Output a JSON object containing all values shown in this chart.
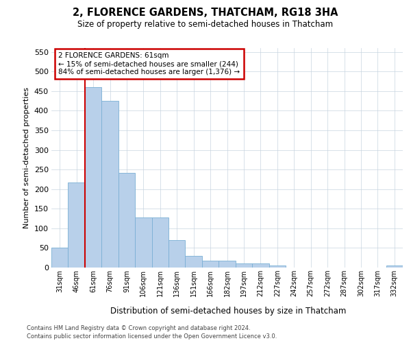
{
  "title": "2, FLORENCE GARDENS, THATCHAM, RG18 3HA",
  "subtitle": "Size of property relative to semi-detached houses in Thatcham",
  "xlabel": "Distribution of semi-detached houses by size in Thatcham",
  "ylabel": "Number of semi-detached properties",
  "categories": [
    "31sqm",
    "46sqm",
    "61sqm",
    "76sqm",
    "91sqm",
    "106sqm",
    "121sqm",
    "136sqm",
    "151sqm",
    "166sqm",
    "182sqm",
    "197sqm",
    "212sqm",
    "227sqm",
    "242sqm",
    "257sqm",
    "272sqm",
    "287sqm",
    "302sqm",
    "317sqm",
    "332sqm"
  ],
  "values": [
    51,
    217,
    460,
    425,
    242,
    128,
    128,
    70,
    30,
    17,
    17,
    10,
    10,
    5,
    0,
    0,
    0,
    0,
    0,
    0,
    5
  ],
  "bar_color": "#b8d0ea",
  "bar_edge_color": "#7aafd4",
  "vline_color": "#cc0000",
  "vline_x_index": 2,
  "ylim": [
    0,
    560
  ],
  "yticks": [
    0,
    50,
    100,
    150,
    200,
    250,
    300,
    350,
    400,
    450,
    500,
    550
  ],
  "ann_line1": "2 FLORENCE GARDENS: 61sqm",
  "ann_line2": "← 15% of semi-detached houses are smaller (244)",
  "ann_line3": "84% of semi-detached houses are larger (1,376) →",
  "ann_box_edgecolor": "#cc0000",
  "footer1": "Contains HM Land Registry data © Crown copyright and database right 2024.",
  "footer2": "Contains public sector information licensed under the Open Government Licence v3.0.",
  "grid_color": "#c8d4e0",
  "bg_color": "#ffffff"
}
